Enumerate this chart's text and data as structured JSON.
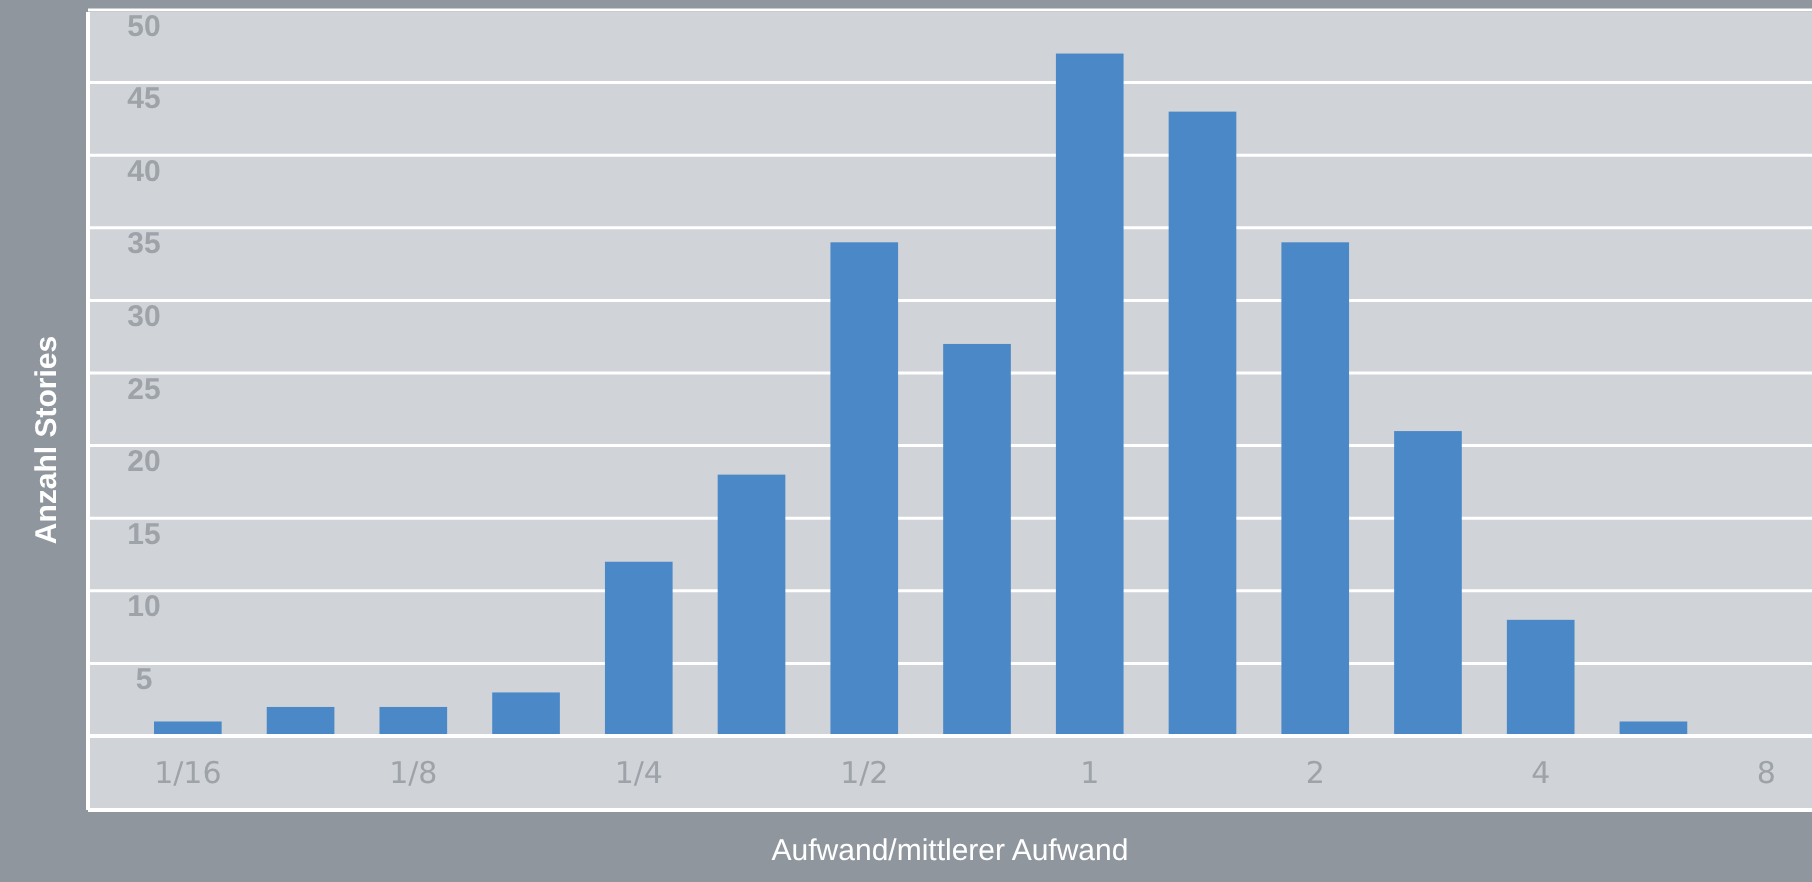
{
  "chart_data": {
    "type": "bar",
    "xlabel": "Aufwand/mittlerer Aufwand",
    "ylabel": "Anzahl Stories",
    "categories": [
      "1/16",
      null,
      "1/8",
      null,
      "1/4",
      null,
      "1/2",
      null,
      "1",
      null,
      "2",
      null,
      "4",
      null,
      "8"
    ],
    "values": [
      1,
      2,
      2,
      3,
      12,
      18,
      34,
      27,
      47,
      43,
      34,
      21,
      8,
      1,
      null
    ],
    "color": "#4a88c8",
    "ylim": [
      0,
      50
    ],
    "yticks": [
      5,
      10,
      15,
      20,
      25,
      30,
      35,
      40,
      45,
      50
    ],
    "grid": "y"
  }
}
